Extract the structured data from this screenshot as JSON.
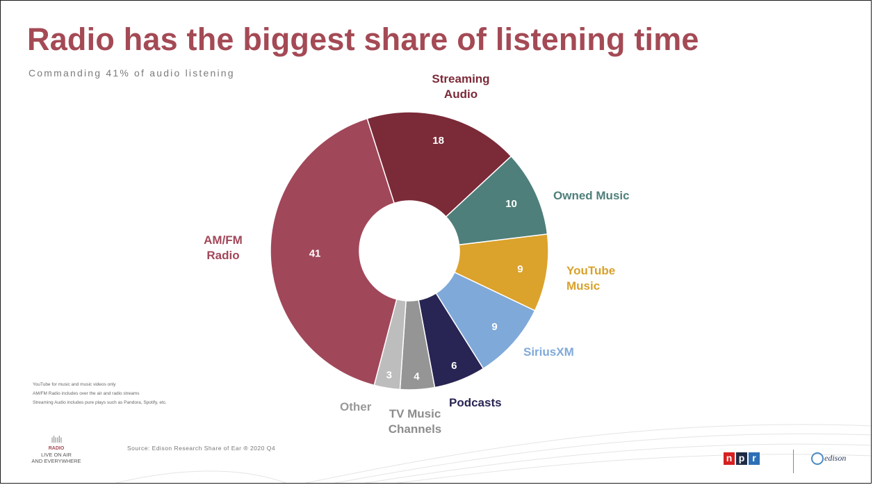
{
  "header": {
    "title": "Radio has the biggest share of listening time",
    "subtitle": "Commanding 41% of audio listening"
  },
  "chart_data": {
    "type": "pie",
    "donut": true,
    "title": "Radio has the biggest share of listening time",
    "subtitle": "Commanding 41% of audio listening",
    "slices": [
      {
        "label": "Streaming Audio",
        "value": 18,
        "color": "#7b2a38",
        "label_color": "#7b2a38"
      },
      {
        "label": "Owned Music",
        "value": 10,
        "color": "#4f7f7a",
        "label_color": "#4f7f7a"
      },
      {
        "label": "YouTube Music",
        "value": 9,
        "color": "#dba22c",
        "label_color": "#d9a12b"
      },
      {
        "label": "SiriusXM",
        "value": 9,
        "color": "#7fa9d9",
        "label_color": "#7fa9d9"
      },
      {
        "label": "Podcasts",
        "value": 6,
        "color": "#282453",
        "label_color": "#282453"
      },
      {
        "label": "TV Music Channels",
        "value": 4,
        "color": "#959595",
        "label_color": "#8c8c8c"
      },
      {
        "label": "Other",
        "value": 3,
        "color": "#bdbdbd",
        "label_color": "#999999"
      },
      {
        "label": "AM/FM Radio",
        "value": 41,
        "color": "#a1475a",
        "label_color": "#a1475a"
      }
    ]
  },
  "notes": [
    "YouTube for music and music videos only",
    "AM/FM Radio includes over the air and radio streams",
    "Streaming Audio includes pure plays such as Pandora, Spotify, etc."
  ],
  "source": "Source: Edison Research Share of Ear ® 2020 Q4",
  "footer": {
    "radio_logo": [
      "RADIO",
      "LIVE ON AIR",
      "AND EVERYWHERE"
    ],
    "npr_letters": [
      "n",
      "p",
      "r"
    ],
    "npr_colors": [
      "#d62021",
      "#1f2a44",
      "#2c6fb7"
    ],
    "edison_label": "edison"
  }
}
